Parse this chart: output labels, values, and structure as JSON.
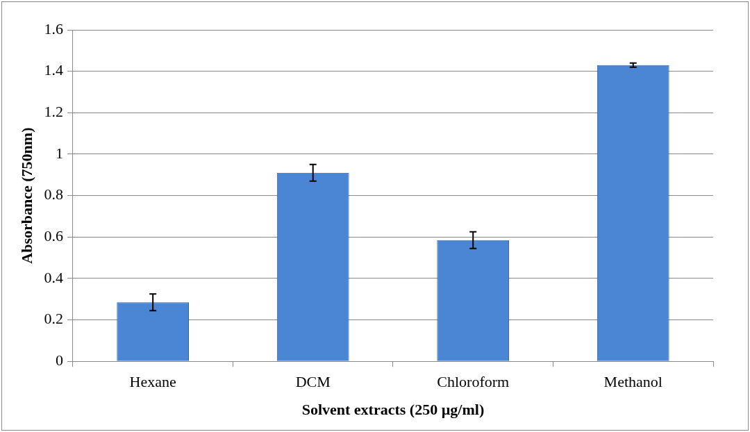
{
  "chart_data": {
    "type": "bar",
    "xlabel": "Solvent extracts (250 µg/ml)",
    "ylabel": "Absorbance (750nm)",
    "categories": [
      "Hexane",
      "DCM",
      "Chloroform",
      "Methanol"
    ],
    "values": [
      0.285,
      0.91,
      0.585,
      1.43
    ],
    "errors": [
      0.04,
      0.04,
      0.04,
      0.01
    ],
    "color": "#4a86d4",
    "ylim": [
      0,
      1.6
    ],
    "yticks": [
      0,
      0.2,
      0.4,
      0.6,
      0.8,
      1,
      1.2,
      1.4,
      1.6
    ],
    "grid": "y"
  }
}
